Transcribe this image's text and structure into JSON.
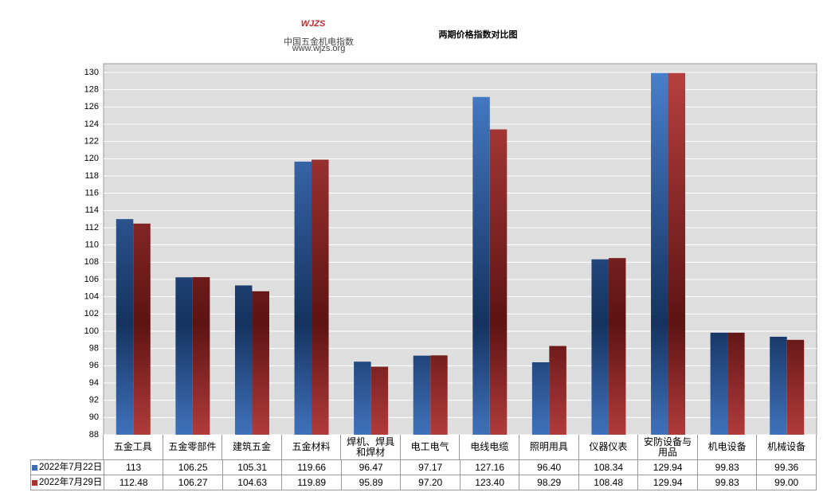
{
  "logo": {
    "mark": "WJZS",
    "name": "中国五金机电指数",
    "url": "www.wjzs.org"
  },
  "chart_data": {
    "type": "bar",
    "title": "两期价格指数对比图",
    "categories": [
      "五金工具",
      "五金零部件",
      "建筑五金",
      "五金材料",
      "焊机、焊具和焊材",
      "电工电气",
      "电线电缆",
      "照明用具",
      "仪器仪表",
      "安防设备与用品",
      "机电设备",
      "机械设备"
    ],
    "series": [
      {
        "name": "2022年7月22日",
        "color": "#3a6db5",
        "values": [
          113,
          106.25,
          105.31,
          119.66,
          96.47,
          97.17,
          127.16,
          96.4,
          108.34,
          129.94,
          99.83,
          99.36
        ],
        "value_labels": [
          "113",
          "106.25",
          "105.31",
          "119.66",
          "96.47",
          "97.17",
          "127.16",
          "96.40",
          "108.34",
          "129.94",
          "99.83",
          "99.36"
        ]
      },
      {
        "name": "2022年7月29日",
        "color": "#a83434",
        "values": [
          112.48,
          106.27,
          104.63,
          119.89,
          95.89,
          97.2,
          123.4,
          98.29,
          108.48,
          129.94,
          99.83,
          99.0
        ],
        "value_labels": [
          "112.48",
          "106.27",
          "104.63",
          "119.89",
          "95.89",
          "97.20",
          "123.40",
          "98.29",
          "108.48",
          "129.94",
          "99.83",
          "99.00"
        ]
      }
    ],
    "ylim": [
      88,
      130
    ],
    "yticks": [
      88,
      90,
      92,
      94,
      96,
      98,
      100,
      102,
      104,
      106,
      108,
      110,
      112,
      114,
      116,
      118,
      120,
      122,
      124,
      126,
      128,
      130
    ],
    "grid": true
  }
}
